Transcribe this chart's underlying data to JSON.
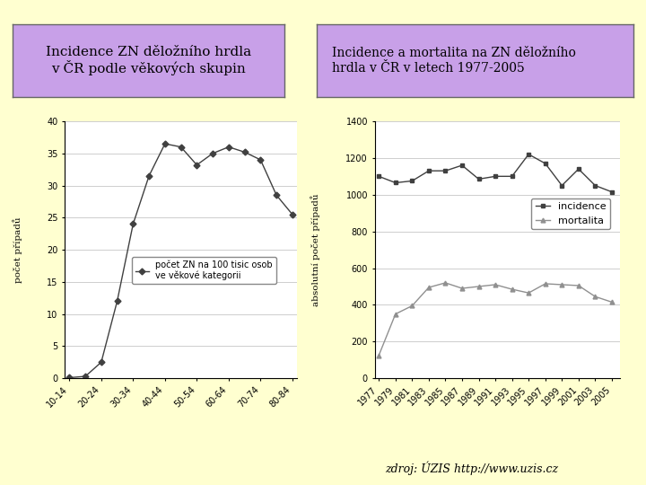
{
  "bg_color": "#ffffd0",
  "header_box_color": "#c8a0e8",
  "header_box_border": "#888888",
  "header1_text": "Incidence ZN děložního hrdla\nv ČR podle věkových skupin",
  "header2_text": "Incidence a mortalita na ZN děložního\nhrdla v ČR v letech 1977-2005",
  "footer_text": "zdroj: ÚZIS http://www.uzis.cz",
  "chart1": {
    "x_labels": [
      "10-14",
      "20-24",
      "30-34",
      "40-44",
      "50-54",
      "60-64",
      "70-74",
      "80-84"
    ],
    "x_values": [
      0,
      2,
      4,
      6,
      8,
      10,
      12,
      14
    ],
    "y_values": [
      0.1,
      0.3,
      2.5,
      12.0,
      24.0,
      31.5,
      36.5,
      36.0,
      33.2,
      35.0,
      36.0,
      35.2,
      34.0,
      28.5,
      25.5
    ],
    "x_all": [
      0,
      1,
      2,
      3,
      4,
      5,
      6,
      7,
      8,
      9,
      10,
      11,
      12,
      13,
      14
    ],
    "ylabel": "počet případů",
    "ylim": [
      0,
      40
    ],
    "yticks": [
      0,
      5,
      10,
      15,
      20,
      25,
      30,
      35,
      40
    ],
    "xtick_pos": [
      0,
      2,
      4,
      6,
      8,
      10,
      12,
      14
    ],
    "legend_text": "počet ZN na 100 tisic osob\nve věkové kategorii"
  },
  "chart2": {
    "years": [
      1977,
      1979,
      1981,
      1983,
      1985,
      1987,
      1989,
      1991,
      1993,
      1995,
      1997,
      1999,
      2001,
      2003,
      2005
    ],
    "incidence": [
      1100,
      1065,
      1075,
      1130,
      1130,
      1160,
      1085,
      1100,
      1100,
      1220,
      1170,
      1050,
      1140,
      1050,
      1015
    ],
    "mortality": [
      125,
      350,
      395,
      495,
      520,
      490,
      500,
      510,
      485,
      465,
      515,
      510,
      505,
      445,
      415
    ],
    "ylabel": "absolutní počet případů",
    "ylim": [
      0,
      1400
    ],
    "yticks": [
      0,
      200,
      400,
      600,
      800,
      1000,
      1200,
      1400
    ],
    "legend_incidence": "incidence",
    "legend_mortality": "mortalita"
  }
}
